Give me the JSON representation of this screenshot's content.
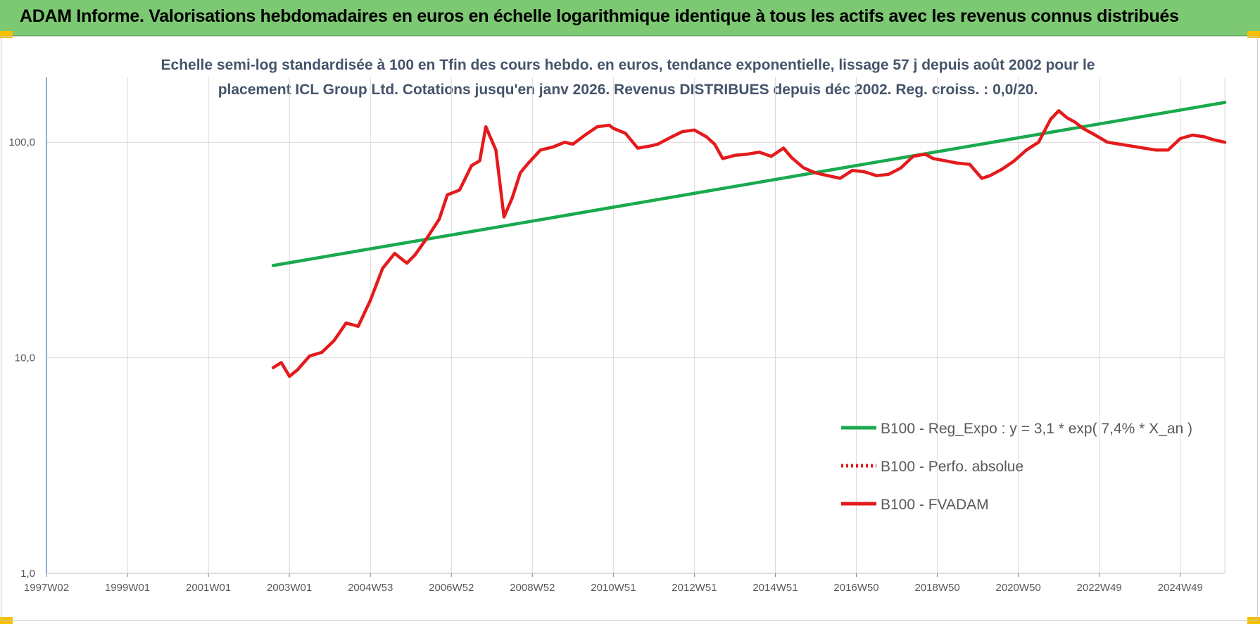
{
  "header": {
    "title": "ADAM Informe. Valorisations hebdomadaires en euros en échelle logarithmique identique à tous les actifs avec les revenus connus distribués"
  },
  "chart_data": {
    "type": "line",
    "title_lines": [
      "Echelle semi-log standardisée à 100 en Tfin des cours hebdo. en euros, tendance exponentielle, lissage 57 j depuis août 2002 pour le",
      "placement ICL Group Ltd. Cotations jusqu'en janv 2026. Revenus DISTRIBUES depuis déc 2002. Reg. croiss. : 0,0/20."
    ],
    "x_axis": {
      "unit": "year",
      "range": [
        1997.0,
        2026.1
      ],
      "tick_labels": [
        "1997W02",
        "1999W01",
        "2001W01",
        "2003W01",
        "2004W53",
        "2006W52",
        "2008W52",
        "2010W51",
        "2012W51",
        "2014W51",
        "2016W50",
        "2018W50",
        "2020W50",
        "2022W49",
        "2024W49"
      ],
      "tick_values": [
        1997.0,
        1999.0,
        2001.0,
        2003.0,
        2005.0,
        2007.0,
        2009.0,
        2011.0,
        2013.0,
        2015.0,
        2017.0,
        2019.0,
        2021.0,
        2023.0,
        2025.0
      ]
    },
    "y_axis": {
      "scale": "log",
      "range": [
        1,
        200
      ],
      "tick_values": [
        1,
        10,
        100
      ],
      "tick_labels": [
        "1,0",
        "10,0",
        "100,0"
      ]
    },
    "grid": true,
    "legend_position": "bottom-right",
    "series": [
      {
        "name": "B100 - Reg_Expo : y = 3,1 * exp( 7,4% *  X_an )",
        "style": "solid",
        "color": "#1aaa4e",
        "x": [
          2002.6,
          2026.1
        ],
        "y": [
          26.8,
          153
        ]
      },
      {
        "name": "B100 - Perfo. absolue",
        "style": "dotted",
        "color": "#e41a1c",
        "x": [],
        "y": []
      },
      {
        "name": "B100 - FVADAM",
        "style": "solid",
        "color": "#e41a1c",
        "x": [
          2002.6,
          2002.8,
          2003.0,
          2003.2,
          2003.5,
          2003.8,
          2004.1,
          2004.4,
          2004.7,
          2005.0,
          2005.3,
          2005.6,
          2005.9,
          2006.1,
          2006.4,
          2006.7,
          2006.9,
          2007.2,
          2007.5,
          2007.7,
          2007.85,
          2008.1,
          2008.3,
          2008.5,
          2008.7,
          2008.8,
          2008.9,
          2009.2,
          2009.5,
          2009.8,
          2010.0,
          2010.3,
          2010.6,
          2010.9,
          2011.0,
          2011.3,
          2011.6,
          2011.9,
          2012.1,
          2012.4,
          2012.7,
          2013.0,
          2013.3,
          2013.5,
          2013.7,
          2014.0,
          2014.3,
          2014.6,
          2014.9,
          2015.2,
          2015.4,
          2015.7,
          2016.0,
          2016.3,
          2016.6,
          2016.9,
          2017.2,
          2017.5,
          2017.8,
          2018.1,
          2018.4,
          2018.7,
          2018.9,
          2019.2,
          2019.5,
          2019.8,
          2020.1,
          2020.3,
          2020.6,
          2020.9,
          2021.2,
          2021.5,
          2021.8,
          2022.0,
          2022.2,
          2022.4,
          2022.6,
          2022.9,
          2023.2,
          2023.5,
          2023.8,
          2024.1,
          2024.4,
          2024.7,
          2025.0,
          2025.3,
          2025.6,
          2025.8,
          2026.0,
          2026.1
        ],
        "y": [
          9.0,
          9.5,
          8.2,
          8.8,
          10.2,
          10.6,
          12.0,
          14.5,
          14.0,
          18.5,
          26.0,
          30.5,
          27.5,
          30.0,
          36.0,
          44.0,
          57.0,
          60.0,
          78.0,
          82.0,
          118.0,
          92.0,
          45.0,
          55.0,
          72.0,
          76.0,
          80.0,
          92.0,
          95.0,
          100.0,
          98.0,
          108.0,
          118.0,
          120.0,
          116.0,
          110.0,
          94.0,
          96.0,
          98.0,
          105.0,
          112.0,
          114.0,
          106.0,
          98.0,
          84.0,
          87.0,
          88.0,
          90.0,
          86.0,
          94.0,
          85.0,
          76.0,
          72.0,
          70.0,
          68.0,
          74.0,
          73.0,
          70.0,
          71.0,
          76.0,
          86.0,
          88.0,
          84.0,
          82.0,
          80.0,
          79.0,
          68.0,
          70.0,
          75.0,
          82.0,
          92.0,
          100.0,
          128.0,
          140.0,
          130.0,
          124.0,
          116.0,
          108.0,
          100.0,
          98.0,
          96.0,
          94.0,
          92.0,
          92.0,
          104.0,
          108.0,
          106.0,
          103.0,
          101.0,
          100.0
        ]
      }
    ]
  }
}
